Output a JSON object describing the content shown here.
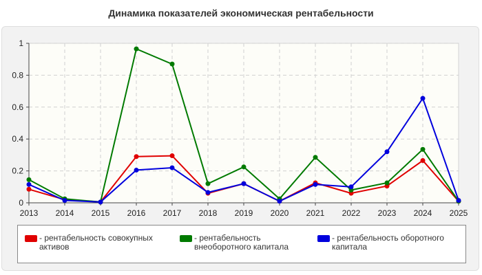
{
  "chart_data": {
    "type": "line",
    "title": "Динамика показателей экономическая рентабельности",
    "x": [
      "2013",
      "2014",
      "2015",
      "2016",
      "2017",
      "2018",
      "2019",
      "2020",
      "2021",
      "2022",
      "2023",
      "2024",
      "2025"
    ],
    "yticks": [
      "0",
      "0.2",
      "0.4",
      "0.6",
      "0.8",
      "1"
    ],
    "ylim": [
      0,
      1
    ],
    "grid": true,
    "legend_position": "bottom",
    "series": [
      {
        "name": "- рентабельность совокупных активов",
        "color": "#e00000",
        "values": [
          0.085,
          0.02,
          0.005,
          0.29,
          0.295,
          0.06,
          0.12,
          0.01,
          0.125,
          0.06,
          0.105,
          0.265,
          0.01
        ]
      },
      {
        "name": "- рентабельность внеоборотного капитала",
        "color": "#007a00",
        "values": [
          0.145,
          0.025,
          0.005,
          0.965,
          0.87,
          0.12,
          0.225,
          0.025,
          0.285,
          0.08,
          0.125,
          0.335,
          0.01
        ]
      },
      {
        "name": "- рентабельность оборотного капитала",
        "color": "#0000dd",
        "values": [
          0.115,
          0.015,
          0.005,
          0.205,
          0.22,
          0.065,
          0.12,
          0.01,
          0.115,
          0.1,
          0.32,
          0.655,
          0.015
        ]
      }
    ]
  }
}
